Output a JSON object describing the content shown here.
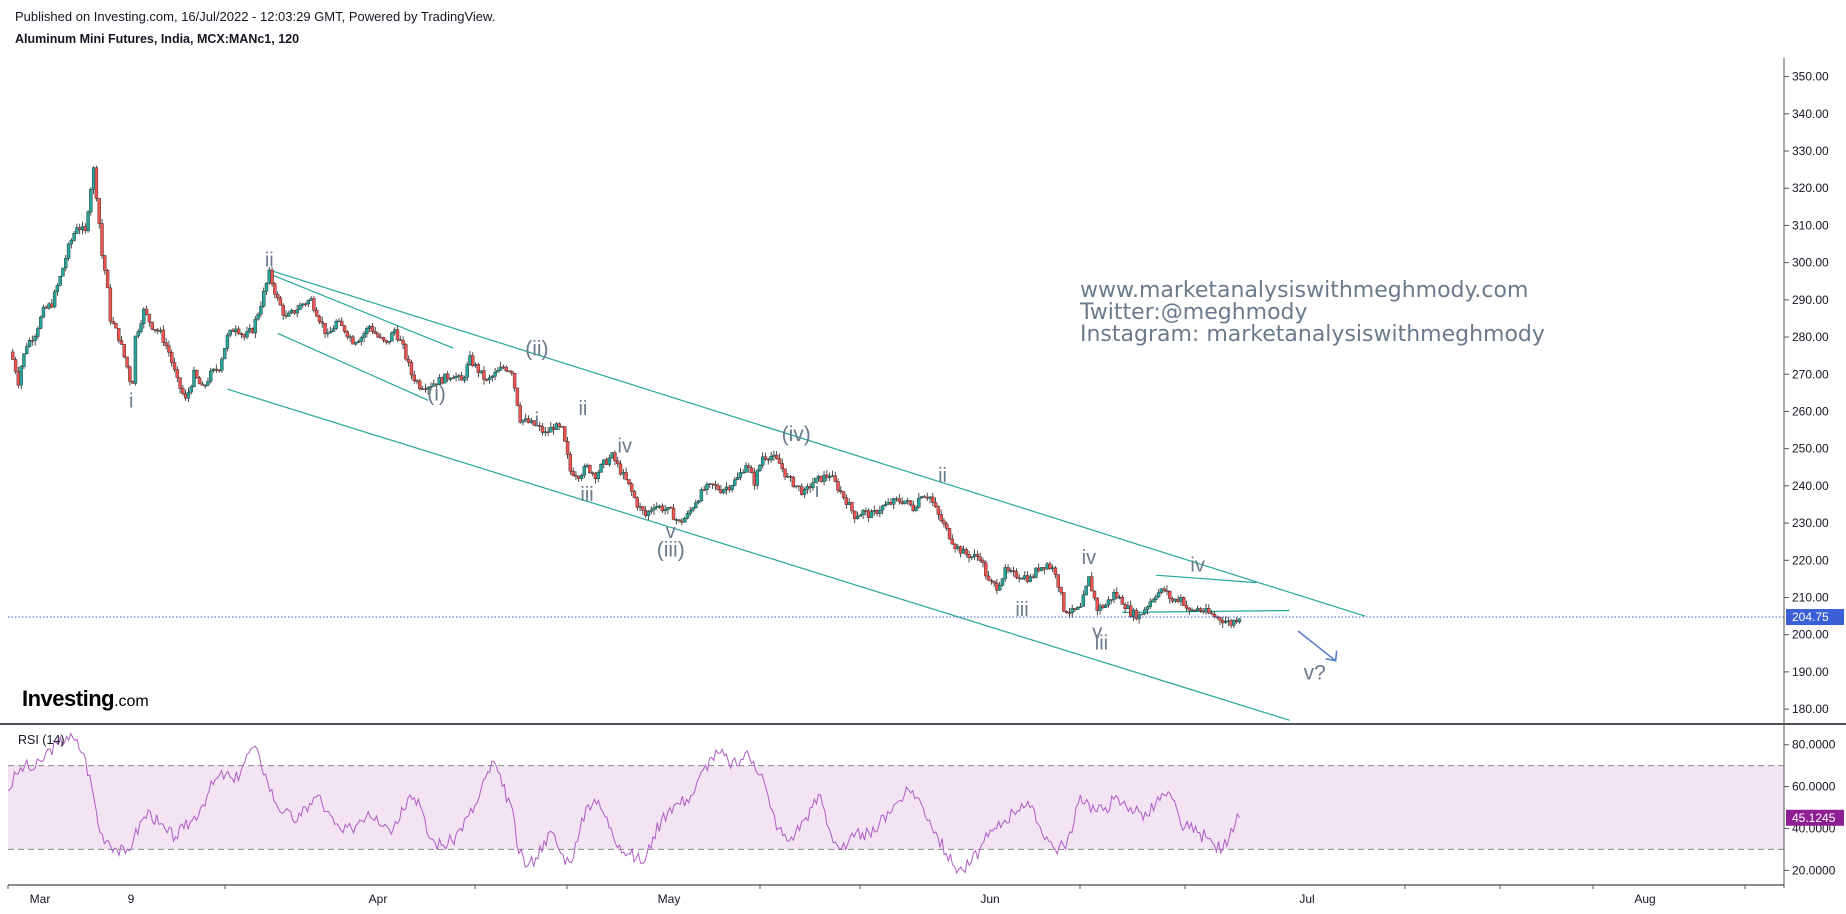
{
  "header": {
    "published": "Published on Investing.com, 16/Jul/2022 - 12:03:29 GMT, Powered by TradingView.",
    "instrument": "Aluminum Mini Futures, India, MCX:MANc1, 120"
  },
  "watermark": {
    "line1": "www.marketanalysiswithmeghmody.com",
    "line2": "Twitter:@meghmody",
    "line3": "Instagram: marketanalysiswithmeghmody"
  },
  "logo": {
    "brand": "Investing",
    "suffix": ".com"
  },
  "colors": {
    "up": "#26a69a",
    "down": "#ef5350",
    "channel": "#26a69a",
    "last_price_tag": "#3b5fd6",
    "rsi_line": "#b05cc6",
    "rsi_band": "#f3e4f3",
    "rsi_tag": "#8e1f93",
    "wave_label": "#6b7a8c"
  },
  "chart_data": [
    {
      "type": "candlestick",
      "title": "Aluminum Mini Futures, India, MCX:MANc1, 120",
      "x_tick_labels": [
        "Mar",
        "9",
        "Apr",
        "May",
        "Jun",
        "Jul",
        "Aug"
      ],
      "y_tick_labels": [
        "180.00",
        "190.00",
        "200.00",
        "210.00",
        "220.00",
        "230.00",
        "240.00",
        "250.00",
        "260.00",
        "270.00",
        "280.00",
        "290.00",
        "300.00",
        "310.00",
        "320.00",
        "330.00",
        "340.00",
        "350.00"
      ],
      "ylim": [
        176,
        355
      ],
      "last_price": 204.75,
      "last_price_label": "204.75",
      "price_path": [
        [
          0,
          276
        ],
        [
          0.5,
          273
        ],
        [
          1,
          268
        ],
        [
          1.3,
          272
        ],
        [
          2,
          278
        ],
        [
          3,
          281
        ],
        [
          4,
          287
        ],
        [
          5,
          289
        ],
        [
          6,
          296
        ],
        [
          7,
          304
        ],
        [
          8,
          310
        ],
        [
          9,
          308
        ],
        [
          9.5,
          318
        ],
        [
          10,
          325
        ],
        [
          10.5,
          315
        ],
        [
          11,
          302
        ],
        [
          11.5,
          296
        ],
        [
          12,
          285
        ],
        [
          13,
          280
        ],
        [
          14,
          272
        ],
        [
          14.6,
          266
        ],
        [
          15,
          280
        ],
        [
          16,
          287
        ],
        [
          17,
          283
        ],
        [
          18,
          281
        ],
        [
          19,
          276
        ],
        [
          20,
          268
        ],
        [
          21,
          263
        ],
        [
          22,
          270
        ],
        [
          23,
          266
        ],
        [
          24,
          270
        ],
        [
          25,
          272
        ],
        [
          26,
          280
        ],
        [
          27,
          283
        ],
        [
          28,
          280
        ],
        [
          29,
          282
        ],
        [
          30,
          289
        ],
        [
          31,
          297
        ],
        [
          32,
          290
        ],
        [
          33,
          285
        ],
        [
          34,
          287
        ],
        [
          35,
          289
        ],
        [
          36,
          290
        ],
        [
          37,
          285
        ],
        [
          38,
          280
        ],
        [
          39,
          284
        ],
        [
          40,
          282
        ],
        [
          41,
          279
        ],
        [
          42,
          280
        ],
        [
          43,
          283
        ],
        [
          44,
          280
        ],
        [
          45,
          278
        ],
        [
          46,
          282
        ],
        [
          47,
          277
        ],
        [
          48,
          270
        ],
        [
          49,
          267
        ],
        [
          50,
          267
        ],
        [
          51,
          268
        ],
        [
          52,
          269
        ],
        [
          53,
          270
        ],
        [
          54,
          268
        ],
        [
          55,
          274
        ],
        [
          56,
          271
        ],
        [
          57,
          268
        ],
        [
          58,
          270
        ],
        [
          59,
          272
        ],
        [
          60,
          271
        ],
        [
          61,
          258
        ],
        [
          62,
          257
        ],
        [
          63,
          256
        ],
        [
          64,
          254
        ],
        [
          65,
          256
        ],
        [
          66,
          255
        ],
        [
          67,
          244
        ],
        [
          68,
          243
        ],
        [
          69,
          245
        ],
        [
          70,
          243
        ],
        [
          71,
          246
        ],
        [
          72,
          248
        ],
        [
          73,
          244
        ],
        [
          74,
          240
        ],
        [
          75,
          235
        ],
        [
          76,
          232
        ],
        [
          77,
          235
        ],
        [
          78,
          234
        ],
        [
          79,
          233
        ],
        [
          80,
          230
        ],
        [
          81,
          232
        ],
        [
          82,
          236
        ],
        [
          83,
          239
        ],
        [
          84,
          240
        ],
        [
          85,
          239
        ],
        [
          86,
          240
        ],
        [
          87,
          242
        ],
        [
          88,
          246
        ],
        [
          89,
          241
        ],
        [
          90,
          248
        ],
        [
          91,
          248
        ],
        [
          92,
          246
        ],
        [
          93,
          242
        ],
        [
          94,
          240
        ],
        [
          95,
          238
        ],
        [
          96,
          241
        ],
        [
          97,
          242
        ],
        [
          98,
          243
        ],
        [
          100,
          236
        ],
        [
          101,
          232
        ],
        [
          102,
          233
        ],
        [
          103,
          232
        ],
        [
          104,
          234
        ],
        [
          105,
          235
        ],
        [
          106,
          236
        ],
        [
          107,
          236
        ],
        [
          108,
          234
        ],
        [
          109,
          238
        ],
        [
          110,
          237
        ],
        [
          111,
          232
        ],
        [
          112,
          228
        ],
        [
          113,
          224
        ],
        [
          114,
          222
        ],
        [
          115,
          221
        ],
        [
          116,
          221
        ],
        [
          117,
          214
        ],
        [
          118,
          213
        ],
        [
          119,
          217
        ],
        [
          120,
          216
        ],
        [
          121,
          216
        ],
        [
          122,
          215
        ],
        [
          123,
          218
        ],
        [
          124,
          219
        ],
        [
          125,
          217
        ],
        [
          126,
          207
        ],
        [
          127,
          206
        ],
        [
          128,
          207
        ],
        [
          129,
          215
        ],
        [
          130,
          207
        ],
        [
          131,
          208
        ],
        [
          132,
          211
        ],
        [
          133,
          209
        ],
        [
          134,
          206
        ],
        [
          135,
          205
        ],
        [
          136,
          208
        ],
        [
          137,
          211
        ],
        [
          138,
          212
        ],
        [
          139,
          209
        ],
        [
          140,
          210
        ],
        [
          141,
          206
        ],
        [
          142,
          207
        ],
        [
          143,
          206
        ],
        [
          144,
          205
        ],
        [
          145,
          204
        ],
        [
          146,
          203
        ],
        [
          147,
          205
        ]
      ],
      "last_bar_index": 147,
      "x_span_bars": 176
    },
    {
      "type": "line",
      "title": "RSI (14)",
      "y_tick_labels": [
        "20.0000",
        "40.0000",
        "60.0000",
        "80.0000"
      ],
      "ylim": [
        13,
        88
      ],
      "bands": [
        30,
        70
      ],
      "last_value": 45.1245,
      "last_value_label": "45.1245",
      "values": [
        58,
        66,
        70,
        68,
        72,
        78,
        80,
        84,
        82,
        76,
        60,
        38,
        34,
        30,
        28,
        35,
        44,
        48,
        42,
        38,
        36,
        40,
        44,
        50,
        58,
        64,
        66,
        62,
        70,
        78,
        75,
        62,
        52,
        48,
        44,
        46,
        52,
        56,
        48,
        42,
        38,
        40,
        44,
        48,
        46,
        42,
        40,
        50,
        56,
        54,
        38,
        33,
        32,
        34,
        40,
        46,
        52,
        64,
        72,
        60,
        52,
        28,
        22,
        26,
        34,
        38,
        28,
        24,
        34,
        50,
        54,
        48,
        40,
        32,
        28,
        26,
        24,
        36,
        44,
        50,
        52,
        54,
        58,
        68,
        74,
        76,
        72,
        70,
        76,
        72,
        66,
        50,
        40,
        34,
        38,
        44,
        50,
        56,
        40,
        32,
        30,
        36,
        38,
        36,
        42,
        48,
        52,
        56,
        58,
        52,
        44,
        36,
        28,
        22,
        20,
        24,
        30,
        36,
        40,
        44,
        48,
        52,
        50,
        42,
        36,
        30,
        32,
        38,
        56,
        52,
        48,
        50,
        54,
        52,
        50,
        48,
        46,
        52,
        56,
        54,
        42,
        40,
        38,
        36,
        32,
        30,
        40,
        45.1245
      ]
    }
  ],
  "wave_labels": [
    {
      "text": "i",
      "bar": 14.5,
      "price": 261
    },
    {
      "text": "ii",
      "bar": 31,
      "price": 299
    },
    {
      "text": "(i)",
      "bar": 51,
      "price": 263
    },
    {
      "text": "(ii)",
      "bar": 63,
      "price": 275
    },
    {
      "text": "i",
      "bar": 63,
      "price": 256
    },
    {
      "text": "ii",
      "bar": 68.5,
      "price": 259
    },
    {
      "text": "iii",
      "bar": 69,
      "price": 236
    },
    {
      "text": "iv",
      "bar": 73.5,
      "price": 249
    },
    {
      "text": "v",
      "bar": 79,
      "price": 226
    },
    {
      "text": "(iii)",
      "bar": 79,
      "price": 221
    },
    {
      "text": "(iv)",
      "bar": 94,
      "price": 252
    },
    {
      "text": "i",
      "bar": 96.5,
      "price": 237
    },
    {
      "text": "ii",
      "bar": 111.5,
      "price": 241
    },
    {
      "text": "iii",
      "bar": 121,
      "price": 205
    },
    {
      "text": "iv",
      "bar": 129,
      "price": 219
    },
    {
      "text": "v",
      "bar": 130,
      "price": 199
    },
    {
      "text": "iii",
      "bar": 130.5,
      "price": 196
    },
    {
      "text": "iv",
      "bar": 142,
      "price": 217
    },
    {
      "text": "v?",
      "bar": 156,
      "price": 188
    }
  ]
}
